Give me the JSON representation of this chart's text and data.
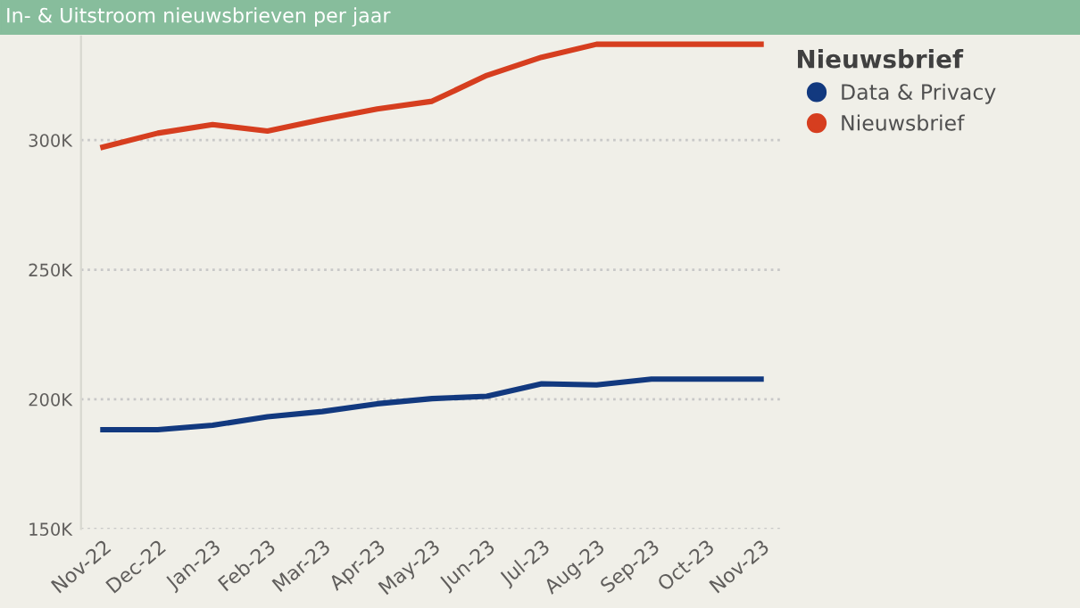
{
  "chart_data": {
    "type": "line",
    "title": "In- & Uitstroom nieuwsbrieven per jaar",
    "legend_title": "Nieuwsbrief",
    "categories": [
      "Nov-22",
      "Dec-22",
      "Jan-23",
      "Feb-23",
      "Mar-23",
      "Apr-23",
      "May-23",
      "Jun-23",
      "Jul-23",
      "Aug-23",
      "Sep-23",
      "Oct-23",
      "Nov-23"
    ],
    "series": [
      {
        "name": "Data & Privacy",
        "color": "#12397f",
        "values": [
          188300,
          188300,
          190000,
          193300,
          195300,
          198300,
          200300,
          201200,
          206000,
          205600,
          207800,
          207800,
          207800
        ]
      },
      {
        "name": "Nieuwsbrief",
        "color": "#d63e1f",
        "values": [
          297300,
          302700,
          306000,
          303500,
          308000,
          312000,
          315000,
          325000,
          332000,
          337000,
          337000,
          337000,
          337000
        ]
      }
    ],
    "ylim": [
      150000,
      340000
    ],
    "yticks": [
      {
        "value": 150000,
        "label": "150K"
      },
      {
        "value": 200000,
        "label": "200K"
      },
      {
        "value": 250000,
        "label": "250K"
      },
      {
        "value": 300000,
        "label": "300K"
      }
    ],
    "grid": "y",
    "legend": "top right",
    "marker": "none",
    "line_style": "solid"
  }
}
